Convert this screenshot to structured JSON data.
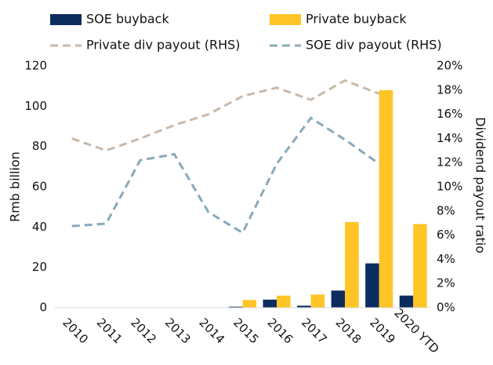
{
  "chart_data": {
    "type": "bar",
    "categories": [
      "2010",
      "2011",
      "2012",
      "2013",
      "2014",
      "2015",
      "2016",
      "2017",
      "2018",
      "2019",
      "2020 YTD"
    ],
    "ylabel": "Rmb billion",
    "y2label": "Dividend payout ratio",
    "ylim": [
      0,
      120
    ],
    "yticks": [
      0,
      20,
      40,
      60,
      80,
      100,
      120
    ],
    "y2lim": [
      0,
      20
    ],
    "y2ticks": [
      {
        "value": 0,
        "label": "0%"
      },
      {
        "value": 2,
        "label": "2%"
      },
      {
        "value": 4,
        "label": "4%"
      },
      {
        "value": 6,
        "label": "6%"
      },
      {
        "value": 8,
        "label": "8%"
      },
      {
        "value": 10,
        "label": "10%"
      },
      {
        "value": 12,
        "label": "12%"
      },
      {
        "value": 14,
        "label": "14%"
      },
      {
        "value": 16,
        "label": "16%"
      },
      {
        "value": 18,
        "label": "18%"
      },
      {
        "value": 20,
        "label": "20%"
      }
    ],
    "grid": false,
    "series": [
      {
        "name": "SOE buyback",
        "type": "bar",
        "color": "#0b2c5c",
        "values": [
          0,
          0,
          0,
          0,
          0,
          0.5,
          4,
          1,
          8.5,
          22,
          6
        ]
      },
      {
        "name": "Private buyback",
        "type": "bar",
        "color": "#ffc425",
        "values": [
          0,
          0,
          0,
          0,
          0,
          3.8,
          6,
          6.5,
          42.5,
          108,
          41.5
        ]
      },
      {
        "name": "Private div payout (RHS)",
        "type": "line",
        "axis": "y2",
        "color": "#c9b9a9",
        "values": [
          14,
          13,
          14,
          15.1,
          16,
          17.5,
          18.2,
          17.2,
          18.8,
          17.7,
          null
        ]
      },
      {
        "name": "SOE div payout (RHS)",
        "type": "line",
        "axis": "y2",
        "color": "#89a9ba",
        "values": [
          6.75,
          6.95,
          12.2,
          12.7,
          7.9,
          6.2,
          11.9,
          15.7,
          13.9,
          11.9,
          null
        ]
      }
    ]
  }
}
